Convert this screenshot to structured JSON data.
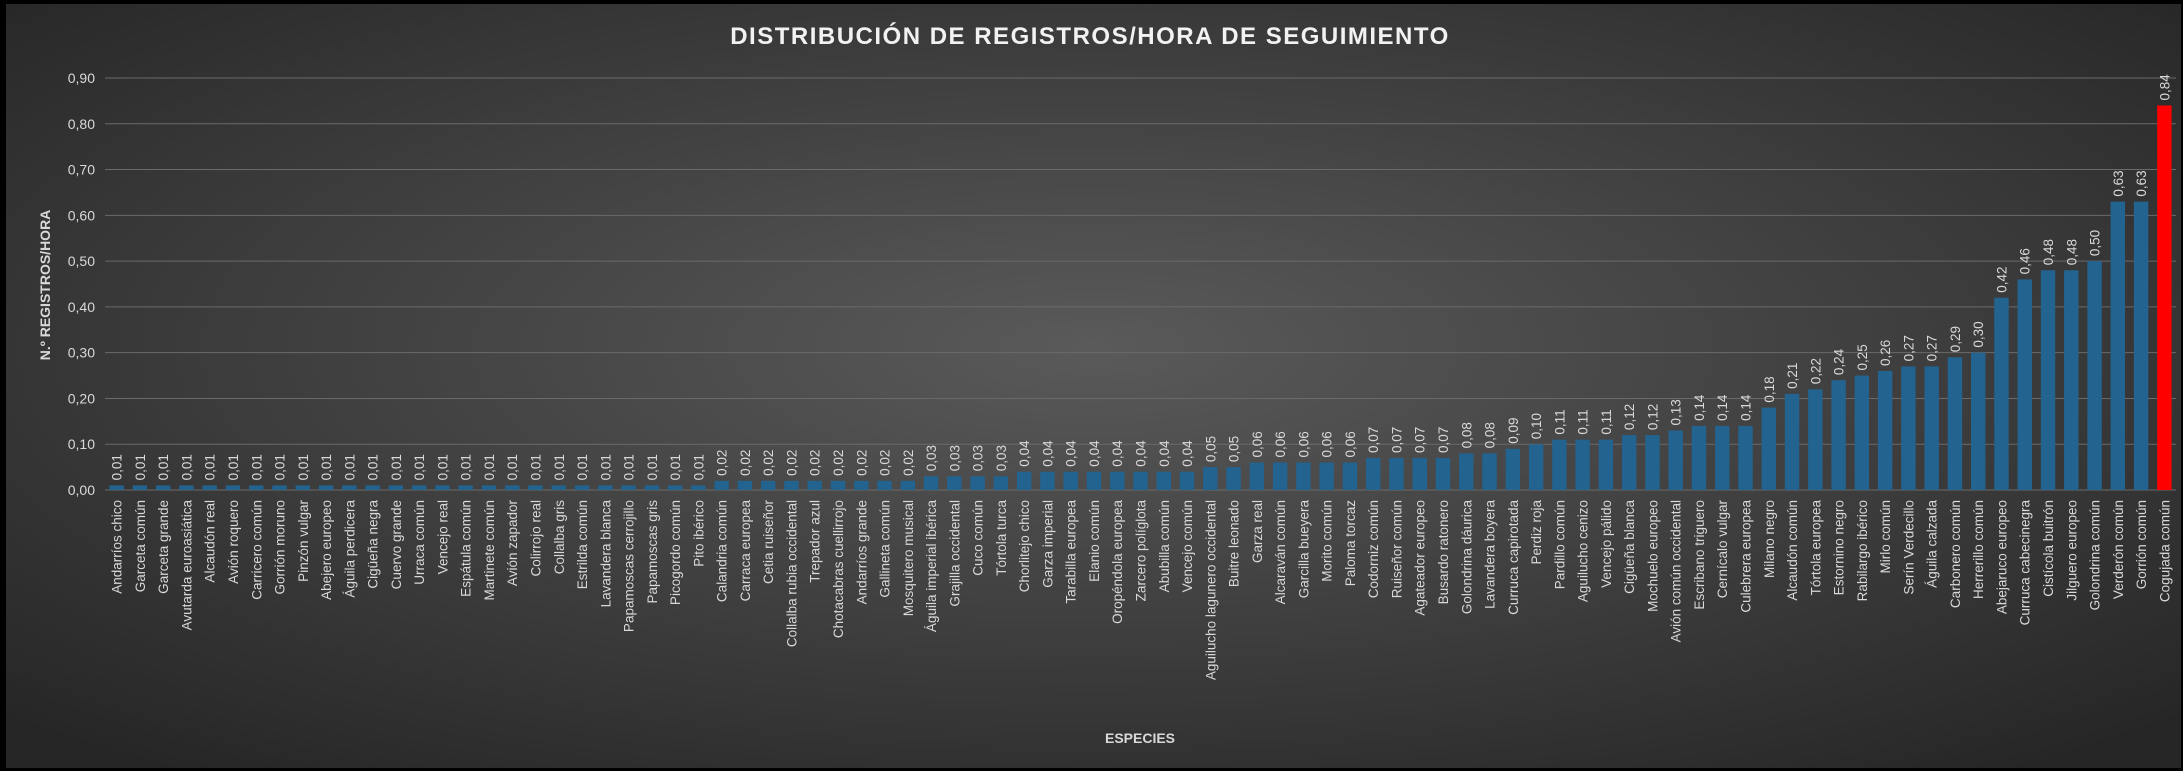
{
  "chart_data": {
    "type": "bar",
    "title": "DISTRIBUCIÓN DE REGISTROS/HORA DE SEGUIMIENTO",
    "y_label": "N.º REGISTROS/HORA",
    "x_label": "ESPECIES",
    "categories": [
      "Andarríos chico",
      "Garceta común",
      "Garceta grande",
      "Avutarda euroasiática",
      "Alcaudón real",
      "Avión roquero",
      "Carricero común",
      "Gorrión moruno",
      "Pinzón vulgar",
      "Abejero europeo",
      "Águila perdicera",
      "Cigüeña negra",
      "Cuervo grande",
      "Urraca común",
      "Vencejo real",
      "Espátula común",
      "Martinete común",
      "Avión zapador",
      "Colirrojo real",
      "Collalba gris",
      "Estrilda común",
      "Lavandera blanca",
      "Papamoscas cerrojillo",
      "Papamoscas gris",
      "Picogordo común",
      "Pito ibérico",
      "Calandria común",
      "Carraca europea",
      "Cetia ruiseñor",
      "Collalba rubia occidental",
      "Trepador azul",
      "Chotacabras cuellirrojo",
      "Andarríos grande",
      "Gallineta común",
      "Mosquitero musical",
      "Águila imperial ibérica",
      "Grajilla occidental",
      "Cuco común",
      "Tórtola turca",
      "Chorlitejo chico",
      "Garza imperial",
      "Tarabilla europea",
      "Elanio común",
      "Oropéndola europea",
      "Zarcero políglota",
      "Abubilla común",
      "Vencejo común",
      "Aguilucho lagunero occidental",
      "Buitre leonado",
      "Garza real",
      "Alcaraván común",
      "Garcilla bueyera",
      "Morito común",
      "Paloma torcaz",
      "Codorniz común",
      "Ruiseñor común",
      "Agateador europeo",
      "Busardo ratonero",
      "Golondrina dáurica",
      "Lavandera boyera",
      "Curruca capirotada",
      "Perdiz roja",
      "Pardillo común",
      "Aguilucho cenizo",
      "Vencejo pálido",
      "Cigüeña blanca",
      "Mochuelo europeo",
      "Avión común occidental",
      "Escribano triguero",
      "Cernícalo vulgar",
      "Culebrera europea",
      "Milano negro",
      "Alcaudón común",
      "Tórtola europea",
      "Estornino negro",
      "Rabilargo ibérico",
      "Mirlo común",
      "Serín Verdecillo",
      "Águila calzada",
      "Carbonero común",
      "Herrerillo común",
      "Abejaruco europeo",
      "Curruca cabecinegra",
      "Cistícola buitrón",
      "Jilguero europeo",
      "Golondrina común",
      "Verderón común",
      "Gorrión común",
      "Cogujada común"
    ],
    "values": [
      0.01,
      0.01,
      0.01,
      0.01,
      0.01,
      0.01,
      0.01,
      0.01,
      0.01,
      0.01,
      0.01,
      0.01,
      0.01,
      0.01,
      0.01,
      0.01,
      0.01,
      0.01,
      0.01,
      0.01,
      0.01,
      0.01,
      0.01,
      0.01,
      0.01,
      0.01,
      0.02,
      0.02,
      0.02,
      0.02,
      0.02,
      0.02,
      0.02,
      0.02,
      0.02,
      0.03,
      0.03,
      0.03,
      0.03,
      0.04,
      0.04,
      0.04,
      0.04,
      0.04,
      0.04,
      0.04,
      0.04,
      0.05,
      0.05,
      0.06,
      0.06,
      0.06,
      0.06,
      0.06,
      0.07,
      0.07,
      0.07,
      0.07,
      0.08,
      0.08,
      0.09,
      0.1,
      0.11,
      0.11,
      0.11,
      0.12,
      0.12,
      0.13,
      0.14,
      0.14,
      0.14,
      0.18,
      0.21,
      0.22,
      0.24,
      0.25,
      0.26,
      0.27,
      0.27,
      0.29,
      0.3,
      0.42,
      0.46,
      0.48,
      0.48,
      0.5,
      0.63,
      0.63,
      0.84
    ],
    "value_labels": [
      "0,01",
      "0,01",
      "0,01",
      "0,01",
      "0,01",
      "0,01",
      "0,01",
      "0,01",
      "0,01",
      "0,01",
      "0,01",
      "0,01",
      "0,01",
      "0,01",
      "0,01",
      "0,01",
      "0,01",
      "0,01",
      "0,01",
      "0,01",
      "0,01",
      "0,01",
      "0,01",
      "0,01",
      "0,01",
      "0,01",
      "0,02",
      "0,02",
      "0,02",
      "0,02",
      "0,02",
      "0,02",
      "0,02",
      "0,02",
      "0,02",
      "0,03",
      "0,03",
      "0,03",
      "0,03",
      "0,04",
      "0,04",
      "0,04",
      "0,04",
      "0,04",
      "0,04",
      "0,04",
      "0,04",
      "0,05",
      "0,05",
      "0,06",
      "0,06",
      "0,06",
      "0,06",
      "0,06",
      "0,07",
      "0,07",
      "0,07",
      "0,07",
      "0,08",
      "0,08",
      "0,09",
      "0,10",
      "0,11",
      "0,11",
      "0,11",
      "0,12",
      "0,12",
      "0,13",
      "0,14",
      "0,14",
      "0,14",
      "0,18",
      "0,21",
      "0,22",
      "0,24",
      "0,25",
      "0,26",
      "0,27",
      "0,27",
      "0,29",
      "0,30",
      "0,42",
      "0,46",
      "0,48",
      "0,48",
      "0,50",
      "0,63",
      "0,63",
      "0,84"
    ],
    "colors": [
      "#23638f",
      "#23638f",
      "#23638f",
      "#23638f",
      "#23638f",
      "#23638f",
      "#23638f",
      "#23638f",
      "#23638f",
      "#23638f",
      "#23638f",
      "#23638f",
      "#23638f",
      "#23638f",
      "#23638f",
      "#23638f",
      "#23638f",
      "#23638f",
      "#23638f",
      "#23638f",
      "#23638f",
      "#23638f",
      "#23638f",
      "#23638f",
      "#23638f",
      "#23638f",
      "#23638f",
      "#23638f",
      "#23638f",
      "#23638f",
      "#23638f",
      "#23638f",
      "#23638f",
      "#23638f",
      "#23638f",
      "#23638f",
      "#23638f",
      "#23638f",
      "#23638f",
      "#23638f",
      "#23638f",
      "#23638f",
      "#23638f",
      "#23638f",
      "#23638f",
      "#23638f",
      "#23638f",
      "#23638f",
      "#23638f",
      "#23638f",
      "#23638f",
      "#23638f",
      "#23638f",
      "#23638f",
      "#23638f",
      "#23638f",
      "#23638f",
      "#23638f",
      "#23638f",
      "#23638f",
      "#23638f",
      "#23638f",
      "#23638f",
      "#23638f",
      "#23638f",
      "#23638f",
      "#23638f",
      "#23638f",
      "#23638f",
      "#23638f",
      "#23638f",
      "#23638f",
      "#23638f",
      "#23638f",
      "#23638f",
      "#23638f",
      "#23638f",
      "#23638f",
      "#23638f",
      "#23638f",
      "#23638f",
      "#23638f",
      "#23638f",
      "#23638f",
      "#23638f",
      "#23638f",
      "#23638f",
      "#23638f",
      "#ff0000"
    ],
    "ylim": [
      0,
      0.9
    ],
    "yticks": [
      {
        "value": 0,
        "label": "0,00"
      },
      {
        "value": 0.1,
        "label": "0,10"
      },
      {
        "value": 0.2,
        "label": "0,20"
      },
      {
        "value": 0.3,
        "label": "0,30"
      },
      {
        "value": 0.4,
        "label": "0,40"
      },
      {
        "value": 0.5,
        "label": "0,50"
      },
      {
        "value": 0.6,
        "label": "0,60"
      },
      {
        "value": 0.7,
        "label": "0,70"
      },
      {
        "value": 0.8,
        "label": "0,80"
      },
      {
        "value": 0.9,
        "label": "0,90"
      }
    ],
    "grid": true
  }
}
